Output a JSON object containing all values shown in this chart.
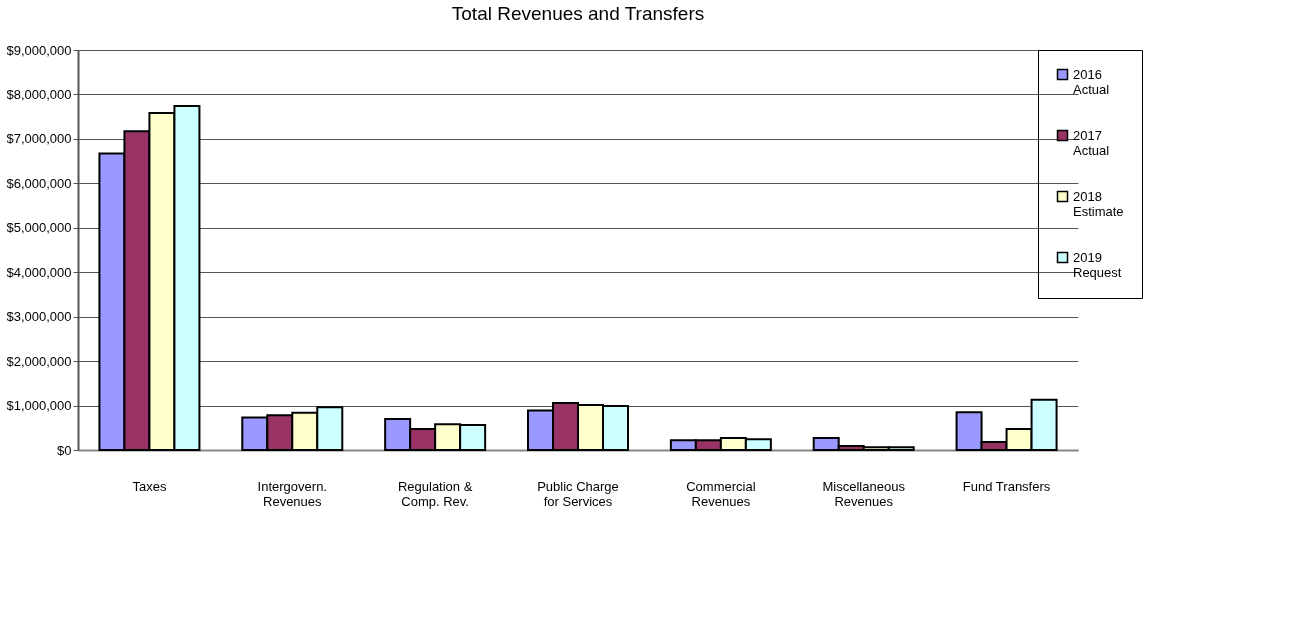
{
  "chart_data": {
    "type": "bar",
    "title": "Total Revenues and Transfers",
    "categories": [
      "Taxes",
      "Intergovern. Revenues",
      "Regulation & Comp. Rev.",
      "Public Charge for Services",
      "Commercial Revenues",
      "Miscellaneous Revenues",
      "Fund Transfers"
    ],
    "series": [
      {
        "name": "2016 Actual",
        "color": "#9999ff",
        "values": [
          6670000,
          730000,
          700000,
          890000,
          220000,
          270000,
          850000
        ]
      },
      {
        "name": "2017 Actual",
        "color": "#993366",
        "values": [
          7170000,
          780000,
          470000,
          1060000,
          220000,
          90000,
          180000
        ]
      },
      {
        "name": "2018 Estimate",
        "color": "#ffffcc",
        "values": [
          7580000,
          840000,
          580000,
          1010000,
          270000,
          60000,
          470000
        ]
      },
      {
        "name": "2019 Request",
        "color": "#ccffff",
        "values": [
          7740000,
          960000,
          560000,
          990000,
          240000,
          60000,
          1130000
        ]
      }
    ],
    "ylim": [
      0,
      9000000
    ],
    "yticks": [
      {
        "value": 0,
        "label": "$0"
      },
      {
        "value": 1000000,
        "label": "$1,000,000"
      },
      {
        "value": 2000000,
        "label": "$2,000,000"
      },
      {
        "value": 3000000,
        "label": "$3,000,000"
      },
      {
        "value": 4000000,
        "label": "$4,000,000"
      },
      {
        "value": 5000000,
        "label": "$5,000,000"
      },
      {
        "value": 6000000,
        "label": "$6,000,000"
      },
      {
        "value": 7000000,
        "label": "$7,000,000"
      },
      {
        "value": 8000000,
        "label": "$8,000,000"
      },
      {
        "value": 9000000,
        "label": "$9,000,000"
      }
    ],
    "grid": "y",
    "legend": "right"
  }
}
